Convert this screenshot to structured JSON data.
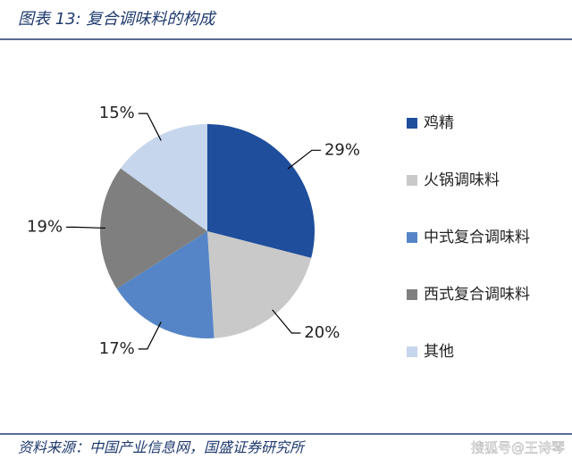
{
  "chart_data": {
    "type": "pie",
    "title": "图表 13: 复合调味料的构成",
    "categories": [
      "鸡精",
      "火锅调味料",
      "中式复合调味料",
      "西式复合调味料",
      "其他"
    ],
    "values": [
      29,
      20,
      17,
      19,
      15
    ],
    "value_labels": [
      "29%",
      "20%",
      "17%",
      "19%",
      "15%"
    ],
    "colors": [
      "#1f4e9c",
      "#c9c9c9",
      "#5585c6",
      "#7f7f7f",
      "#c6d6ec"
    ],
    "legend": "right",
    "source": "资料来源：中国产业信息网，国盛证券研究所",
    "watermark": "搜狐号@王诗琴"
  }
}
